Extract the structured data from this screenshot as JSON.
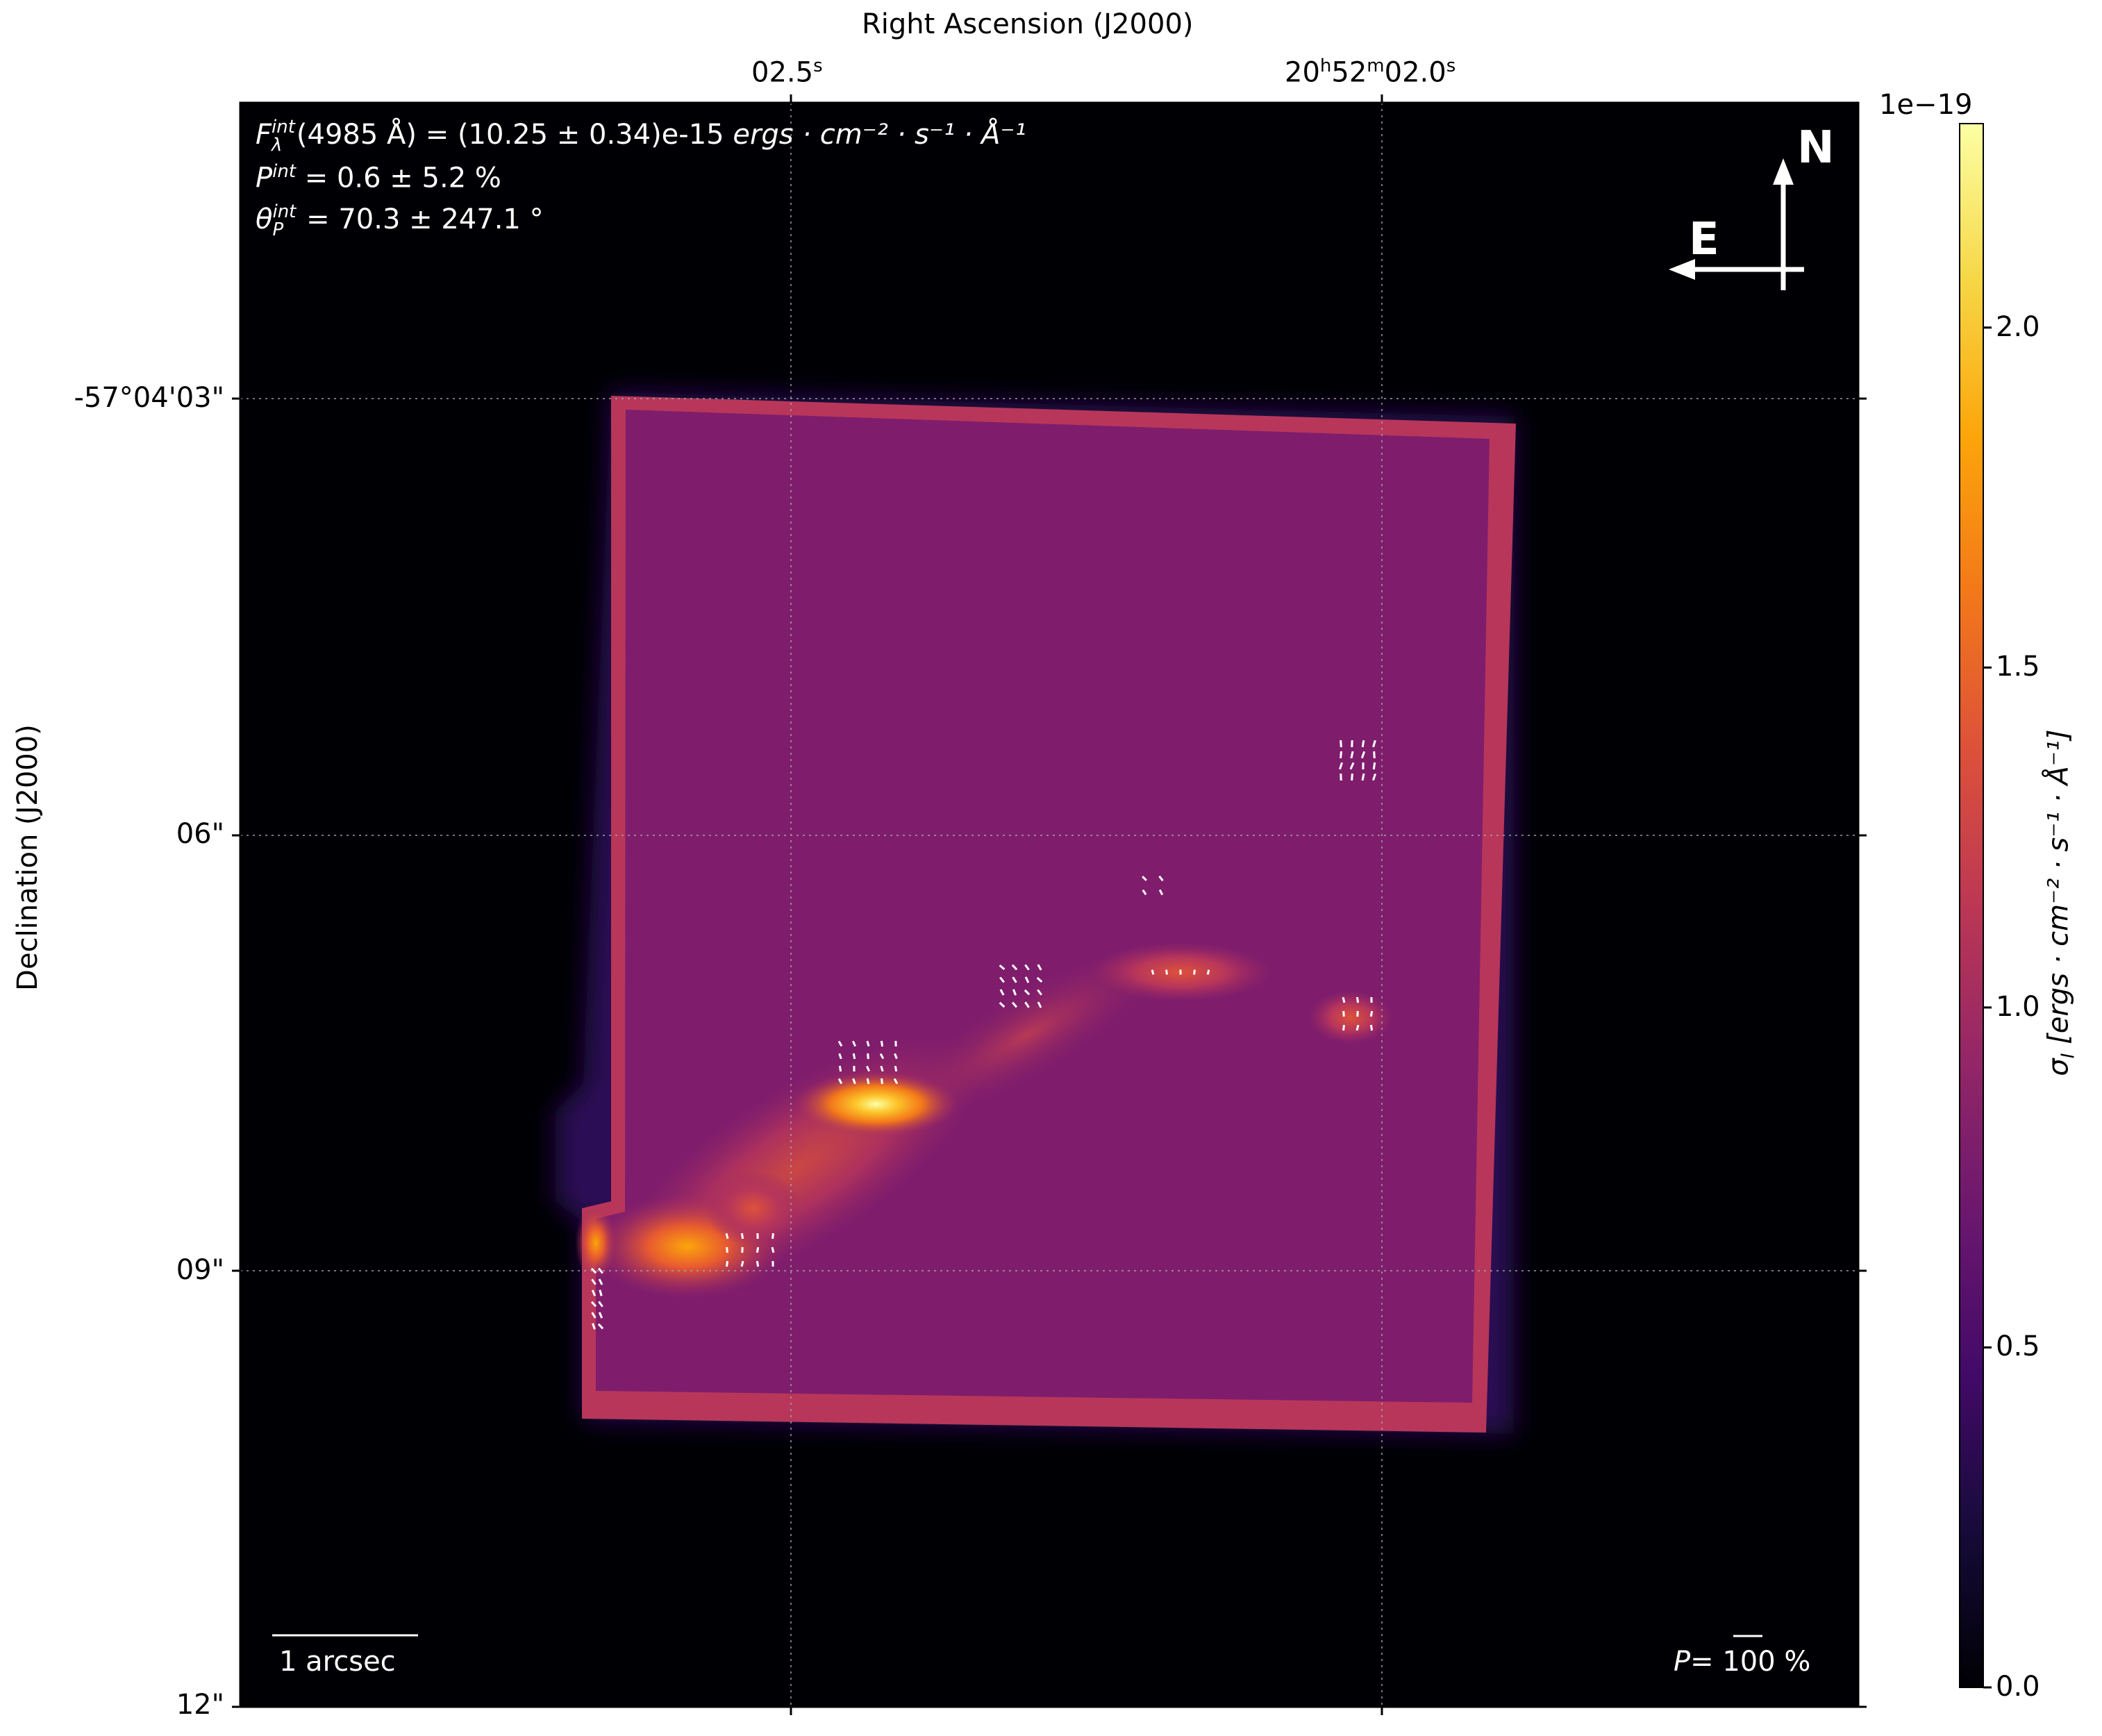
{
  "chart_data": {
    "type": "heatmap",
    "xlabel": "Right Ascension (J2000)",
    "ylabel": "Declination (J2000)",
    "x_ticks": [
      {
        "text": "02.5",
        "sup": "s",
        "prefix": "",
        "mid": ""
      },
      {
        "text": "02.0",
        "sup": "s",
        "prefix": "20",
        "prefix_sup": "h",
        "mid": "52",
        "mid_sup": "m"
      }
    ],
    "y_ticks": [
      "-57°04'03\"",
      "06\"",
      "09\"",
      "12\""
    ],
    "colorbar": {
      "label": "σ_I [ergs·cm⁻²·s⁻¹·Å⁻¹]",
      "label_html_main": "σ",
      "label_html_sub": "I",
      "label_rest": "[ergs · cm⁻² · s⁻¹ · Å⁻¹]",
      "offset": "1e−19",
      "ticks": [
        0.0,
        0.5,
        1.0,
        1.5,
        2.0
      ],
      "tick_labels": [
        "0.0",
        "0.5",
        "1.0",
        "1.5",
        "2.0"
      ],
      "range": [
        0.0,
        2.3
      ],
      "colormap": "inferno"
    },
    "annotations": {
      "flux_prefix": "F",
      "flux_sup": "int",
      "flux_sub": "λ",
      "flux_text": "(4985 Å) = (10.25 ± 0.34)e-15 ",
      "flux_units": "ergs · cm⁻² · s⁻¹ · Å⁻¹",
      "pol_prefix": "P",
      "pol_sup": "int",
      "pol_text": " = 0.6 ± 5.2 %",
      "angle_prefix": "θ",
      "angle_sup": "int",
      "angle_sub": "P",
      "angle_text": " = 70.3 ± 247.1 °",
      "compass_n": "N",
      "compass_e": "E",
      "scalebar_label": "1 arcsec",
      "pol_scale_label": "P= ",
      "pol_scale_value": "100 %"
    },
    "image_regions": {
      "background_level": 0.0,
      "frame_interior_level": 0.85,
      "frame_edge_level": 1.1,
      "bright_knots": [
        {
          "name": "knot-peak",
          "level": 2.25
        },
        {
          "name": "knot-southwest",
          "level": 1.75
        },
        {
          "name": "knot-east",
          "level": 1.2
        },
        {
          "name": "knot-far-east",
          "level": 1.1
        }
      ]
    }
  }
}
